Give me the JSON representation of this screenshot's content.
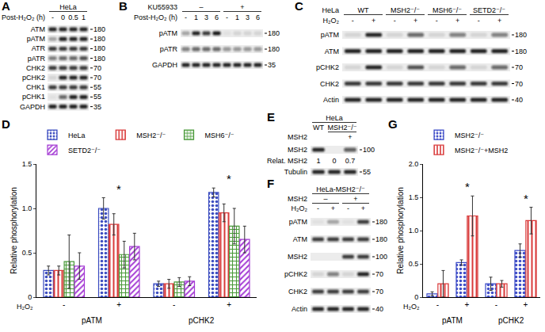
{
  "chart_data": [
    {
      "panel": "D",
      "type": "bar",
      "y_title": "Relative phosphorylation",
      "x_title": "H₂O₂",
      "categories": [
        "-",
        "+",
        "-",
        "+"
      ],
      "group_labels": [
        "pATM",
        "pCHK2"
      ],
      "ylim": [
        0,
        1.5
      ],
      "yticks": [
        0,
        0.5,
        {
          "value": 1,
          "label": "1.0"
        },
        1.5
      ],
      "legend": "top",
      "series": [
        {
          "name": "HeLa",
          "color": "#3b4cc0",
          "values": [
            0.3,
            1.0,
            0.15,
            1.18
          ],
          "errors": [
            0.05,
            0.12,
            0.03,
            0.05
          ]
        },
        {
          "name": "MSH2⁻/⁻",
          "color": "#d93a3a",
          "values": [
            0.3,
            0.82,
            0.15,
            0.95
          ],
          "errors": [
            0.05,
            0.12,
            0.05,
            0.1
          ]
        },
        {
          "name": "MSH6⁻/⁻",
          "color": "#4a9a3a",
          "values": [
            0.4,
            0.48,
            0.17,
            0.8
          ],
          "errors": [
            0.3,
            0.15,
            0.05,
            0.2
          ]
        },
        {
          "name": "SETD2⁻/⁻",
          "color": "#a43bd4",
          "values": [
            0.35,
            0.57,
            0.18,
            0.65
          ],
          "errors": [
            0.15,
            0.15,
            0.05,
            0.15
          ]
        }
      ],
      "annotations": [
        {
          "text": "*",
          "category": 1
        },
        {
          "text": "*",
          "category": 3
        }
      ]
    },
    {
      "panel": "G",
      "type": "bar",
      "y_title": "Relative phosphorylation",
      "x_title": "H₂O₂",
      "categories": [
        "-",
        "+",
        "-",
        "+"
      ],
      "group_labels": [
        "pATM",
        "pCHK2"
      ],
      "ylim": [
        0,
        2
      ],
      "yticks": [
        0,
        0.5,
        {
          "value": 1,
          "label": "1.0"
        },
        1.5,
        {
          "value": 2,
          "label": "2.0"
        }
      ],
      "legend": "top",
      "series": [
        {
          "name": "MSH2⁻/⁻",
          "color": "#3d4cc7",
          "values": [
            0.05,
            0.52,
            0.2,
            0.7
          ],
          "errors": [
            0.03,
            0.04,
            0.1,
            0.1
          ]
        },
        {
          "name": "MSH2⁻/⁻+MSH2",
          "color": "#d93a3a",
          "values": [
            0.2,
            1.22,
            0.2,
            1.15
          ],
          "errors": [
            0.2,
            0.3,
            0.05,
            0.2
          ]
        }
      ],
      "annotations": [
        {
          "text": "*",
          "category": 1
        },
        {
          "text": "*",
          "category": 3
        }
      ]
    }
  ],
  "blots": [
    {
      "panel": "A",
      "header_rows": [
        {
          "items": [
            {
              "text": "HeLa",
              "lanes": 4
            }
          ]
        },
        {
          "label": "Post-H₂O₂ (h)",
          "items": [
            "-",
            "0",
            "0.5",
            "1"
          ]
        }
      ],
      "rows": [
        {
          "label": "ATM",
          "mw": 180,
          "bands": [
            0.9,
            0.9,
            0.9,
            0.9
          ]
        },
        {
          "label": "pATM",
          "mw": 180,
          "bands": [
            0.3,
            0.9,
            0.9,
            0.9
          ]
        },
        {
          "label": "ATR",
          "mw": 180,
          "bands": [
            0.8,
            0.8,
            0.8,
            0.8
          ]
        },
        {
          "label": "pATR",
          "mw": 180,
          "bands": [
            0.5,
            0.6,
            0.6,
            0.7
          ]
        },
        {
          "label": "CHK2",
          "mw": 70,
          "bands": [
            0.8,
            0.8,
            0.8,
            0.8
          ]
        },
        {
          "label": "pCHK2",
          "mw": 70,
          "bands": [
            0.1,
            0.9,
            0.9,
            0.9
          ]
        },
        {
          "label": "CHK1",
          "mw": 55,
          "bands": [
            0.8,
            0.8,
            0.8,
            0.8
          ]
        },
        {
          "label": "pCHK1",
          "mw": 55,
          "bands": [
            0.05,
            0.6,
            0.9,
            0.9
          ]
        },
        {
          "label": "GAPDH",
          "mw": 35,
          "bands": [
            0.9,
            0.9,
            0.9,
            0.9
          ]
        }
      ]
    },
    {
      "panel": "B",
      "header_rows": [
        {
          "label": "KU55933",
          "items": [
            {
              "text": "–",
              "lanes": 4
            },
            {
              "text": "+",
              "lanes": 4
            }
          ]
        },
        {
          "label": "Post-H₂O₂ (h)",
          "items": [
            "-",
            "1",
            "3",
            "6",
            "-",
            "1",
            "3",
            "6"
          ]
        }
      ],
      "rows": [
        {
          "label": "pATM",
          "mw": 180,
          "bands": [
            0.3,
            0.9,
            0.8,
            0.95,
            0.05,
            0.1,
            0.1,
            0.1
          ]
        },
        {
          "label": "pATR",
          "mw": 180,
          "bands": [
            0.5,
            0.6,
            0.6,
            0.6,
            0.4,
            0.4,
            0.4,
            0.4
          ]
        },
        {
          "label": "GAPDH",
          "mw": 35,
          "bands": [
            0.9,
            0.9,
            0.9,
            0.9,
            0.9,
            0.9,
            0.9,
            0.9
          ]
        }
      ]
    },
    {
      "panel": "C",
      "header_rows": [
        {
          "label": "HeLa",
          "items": [
            {
              "text": "WT",
              "lanes": 2
            },
            {
              "text": "MSH2⁻/⁻",
              "lanes": 2
            },
            {
              "text": "MSH6⁻/⁻",
              "lanes": 2
            },
            {
              "text": "SETD2⁻/⁻",
              "lanes": 2
            }
          ]
        },
        {
          "label": "H₂O₂",
          "items": [
            "-",
            "+",
            "-",
            "+",
            "-",
            "+",
            "-",
            "+"
          ]
        }
      ],
      "rows": [
        {
          "label": "pATM",
          "mw": 180,
          "bands": [
            0.1,
            0.9,
            0.1,
            0.6,
            0.1,
            0.5,
            0.1,
            0.5
          ]
        },
        {
          "label": "ATM",
          "mw": 180,
          "bands": [
            0.9,
            0.9,
            0.9,
            0.9,
            0.9,
            0.9,
            0.9,
            0.9
          ]
        },
        {
          "label": "pCHK2",
          "mw": 70,
          "bands": [
            0.1,
            0.9,
            0.1,
            0.7,
            0.1,
            0.6,
            0.1,
            0.6
          ]
        },
        {
          "label": "CHK2",
          "mw": 70,
          "bands": [
            0.8,
            0.8,
            0.8,
            0.8,
            0.8,
            0.8,
            0.8,
            0.8
          ]
        },
        {
          "label": "Actin",
          "mw": 40,
          "bands": [
            0.9,
            0.9,
            0.9,
            0.9,
            0.9,
            0.9,
            0.9,
            0.9
          ]
        }
      ]
    },
    {
      "panel": "E",
      "header_rows": [
        {
          "items": [
            {
              "text": "HeLa",
              "lanes": 3
            }
          ]
        },
        {
          "items": [
            "WT",
            {
              "text": "MSH2⁻/⁻",
              "lanes": 2
            }
          ]
        },
        {
          "label": "MSH2",
          "items": [
            null,
            null,
            "+"
          ]
        }
      ],
      "rows": [
        {
          "label": "MSH2",
          "mw": 100,
          "bands": [
            0.9,
            0,
            0.65
          ]
        },
        {
          "label": "Relat. MSH2",
          "texts": [
            1,
            0,
            0.7
          ]
        },
        {
          "label": "Tubulin",
          "mw": 55,
          "bands": [
            0.9,
            0.9,
            0.9
          ]
        }
      ]
    },
    {
      "panel": "F",
      "header_rows": [
        {
          "items": [
            {
              "text": "HeLa-MSH2⁻/⁻",
              "lanes": 4
            }
          ]
        },
        {
          "label": "MSH2",
          "items": [
            {
              "text": "–",
              "lanes": 2
            },
            {
              "text": "+",
              "lanes": 2
            }
          ]
        },
        {
          "label": "H₂O₂",
          "items": [
            "-",
            "+",
            "-",
            "+"
          ]
        }
      ],
      "rows": [
        {
          "label": "pATM",
          "mw": 180,
          "bands": [
            0.05,
            0.3,
            0.05,
            0.8
          ]
        },
        {
          "label": "ATM",
          "mw": 180,
          "bands": [
            0.8,
            0.8,
            0.8,
            0.8
          ]
        },
        {
          "label": "MSH2",
          "mw": 100,
          "bands": [
            0,
            0,
            0.8,
            0.8
          ]
        },
        {
          "label": "pCHK2",
          "mw": 70,
          "bands": [
            0.1,
            0.5,
            0.1,
            0.9
          ]
        },
        {
          "label": "CHK2",
          "mw": 70,
          "bands": [
            0.8,
            0.8,
            0.8,
            0.8
          ]
        },
        {
          "label": "Actin",
          "mw": 40,
          "bands": [
            0.9,
            0.9,
            0.9,
            0.9
          ]
        }
      ]
    }
  ]
}
